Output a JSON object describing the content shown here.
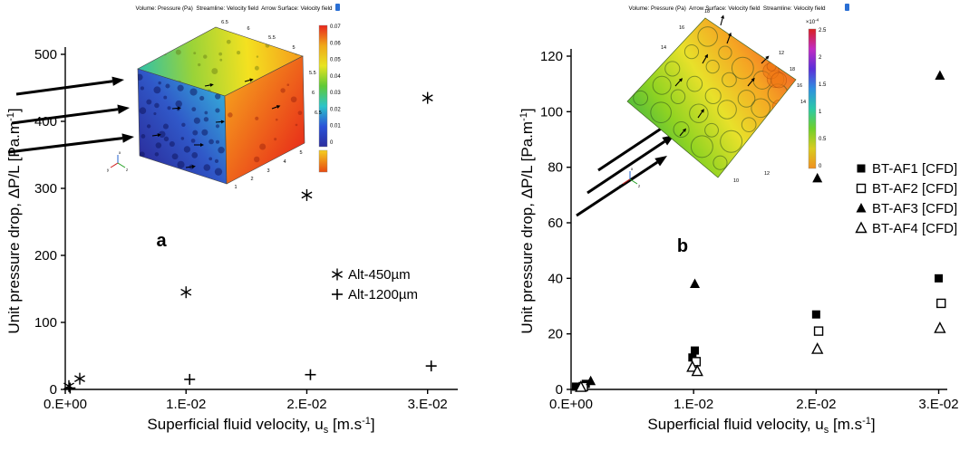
{
  "figure": {
    "background": "#ffffff",
    "marker_color": "#000000"
  },
  "chart_data": [
    {
      "type": "scatter",
      "panel_label": "a",
      "xlabel_parts": {
        "main": "Superficial fluid velocity, u",
        "sub": "s",
        "mid": " [m.s",
        "sup": "-1",
        "close": "]"
      },
      "ylabel_parts": {
        "main": "Unit pressure drop, ΔP/L [Pa.m",
        "sup": "-1",
        "close": "]"
      },
      "xlim": [
        0,
        0.0325
      ],
      "ylim": [
        0,
        500
      ],
      "grid": false,
      "legend_position": "inside-right-middle",
      "yticks": [
        0,
        100,
        200,
        300,
        400,
        500
      ],
      "xticks": [
        {
          "v": 0.0,
          "label": "0.E+00"
        },
        {
          "v": 0.01,
          "label": "1.E-02"
        },
        {
          "v": 0.02,
          "label": "2.E-02"
        },
        {
          "v": 0.03,
          "label": "3.E-02"
        }
      ],
      "series": [
        {
          "name": "Alt-450µm",
          "marker": "asterisk",
          "points": [
            [
              0.0003,
              5
            ],
            [
              0.0012,
              16
            ],
            [
              0.01,
              145
            ],
            [
              0.02,
              290
            ],
            [
              0.03,
              435
            ]
          ]
        },
        {
          "name": "Alt-1200µm",
          "marker": "plus",
          "points": [
            [
              0.0004,
              2
            ],
            [
              0.0103,
              15
            ],
            [
              0.0203,
              22
            ],
            [
              0.0303,
              35
            ]
          ]
        }
      ],
      "inset": {
        "title": "Volume: Pressure (Pa)  Streamline: Velocity field  Arrow Surface: Velocity field",
        "colorbar_ticks": [
          "0.07",
          "0.06",
          "0.05",
          "0.04",
          "0.03",
          "0.02",
          "0.01",
          "0"
        ],
        "colorbar_colors": [
          "#e8251d",
          "#f0a818",
          "#e8e421",
          "#5fc936",
          "#2bc4c9",
          "#2a52d8",
          "#2b2d9e"
        ],
        "colorbar_mini_colors": [
          "#f5cf1e",
          "#e84a10"
        ],
        "body_colors": {
          "front": [
            "#2b2f9e",
            "#3058c8",
            "#35a8d8"
          ],
          "top": [
            "#2fc1a9",
            "#9ad338",
            "#f4e120",
            "#f59a1c"
          ],
          "right": [
            "#f59a1c",
            "#e8311a"
          ]
        },
        "triad_labels": [
          "x",
          "y",
          "z"
        ],
        "edge_numbers": {
          "top": [
            "6.5",
            "6",
            "5.5",
            "5"
          ],
          "right": [
            "5.5",
            "6",
            "6.5"
          ],
          "bottom": [
            "1",
            "2",
            "3",
            "4",
            "5"
          ]
        }
      }
    },
    {
      "type": "scatter",
      "panel_label": "b",
      "xlabel_parts": {
        "main": "Superficial fluid velocity, u",
        "sub": "s",
        "mid": " [m.s",
        "sup": "-1",
        "close": "]"
      },
      "ylabel_parts": {
        "main": "Unit pressure drop, ΔP/L [Pa.m",
        "sup": "-1",
        "close": "]"
      },
      "xlim": [
        0,
        0.0307
      ],
      "ylim": [
        0,
        120
      ],
      "grid": false,
      "legend_position": "inside-right-middle",
      "yticks": [
        0,
        20,
        40,
        60,
        80,
        100,
        120
      ],
      "xticks": [
        {
          "v": 0.0,
          "label": "0.E+00"
        },
        {
          "v": 0.01,
          "label": "1.E-02"
        },
        {
          "v": 0.02,
          "label": "2.E-02"
        },
        {
          "v": 0.03,
          "label": "3.E-02"
        }
      ],
      "series": [
        {
          "name": "BT-AF1 [CFD]",
          "marker": "square-filled",
          "points": [
            [
              0.0004,
              1
            ],
            [
              0.0012,
              2
            ],
            [
              0.0099,
              11.5
            ],
            [
              0.0101,
              14
            ],
            [
              0.02,
              27
            ],
            [
              0.03,
              40
            ]
          ]
        },
        {
          "name": "BT-AF2 [CFD]",
          "marker": "square-open",
          "points": [
            [
              0.001,
              1
            ],
            [
              0.0102,
              10
            ],
            [
              0.0202,
              21
            ],
            [
              0.0302,
              31
            ]
          ]
        },
        {
          "name": "BT-AF3 [CFD]",
          "marker": "triangle-filled",
          "points": [
            [
              0.0016,
              3
            ],
            [
              0.0101,
              38
            ],
            [
              0.0201,
              76
            ],
            [
              0.0301,
              113
            ]
          ]
        },
        {
          "name": "BT-AF4 [CFD]",
          "marker": "triangle-open",
          "points": [
            [
              0.0008,
              0.8
            ],
            [
              0.0099,
              8
            ],
            [
              0.0103,
              6.5
            ],
            [
              0.0201,
              14.5
            ],
            [
              0.0301,
              22
            ]
          ]
        }
      ],
      "inset": {
        "title": "Volume: Pressure (Pa)  Arrow Surface: Velocity field  Streamline: Velocity field",
        "colorbar_ticks": [
          "2.5",
          "2",
          "1.5",
          "1",
          "0.5",
          "0"
        ],
        "colorbar_multiplier": {
          "base": "×10",
          "sup": "-4"
        },
        "colorbar_colors": [
          "#d92020",
          "#c22bc2",
          "#5b2fd8",
          "#2f8fe0",
          "#2bc9a8",
          "#6fd02c",
          "#d8cc20",
          "#f09020"
        ],
        "body_colors": {
          "blob": [
            "#35b24a",
            "#8fd322",
            "#e8e12a",
            "#f5a623",
            "#f05a28"
          ]
        },
        "triad_labels": [
          "x",
          "y",
          "z"
        ],
        "edge_numbers": {
          "ring": [
            "18",
            "16",
            "14",
            "12",
            "18",
            "16",
            "14",
            "12",
            "10"
          ]
        }
      }
    }
  ]
}
